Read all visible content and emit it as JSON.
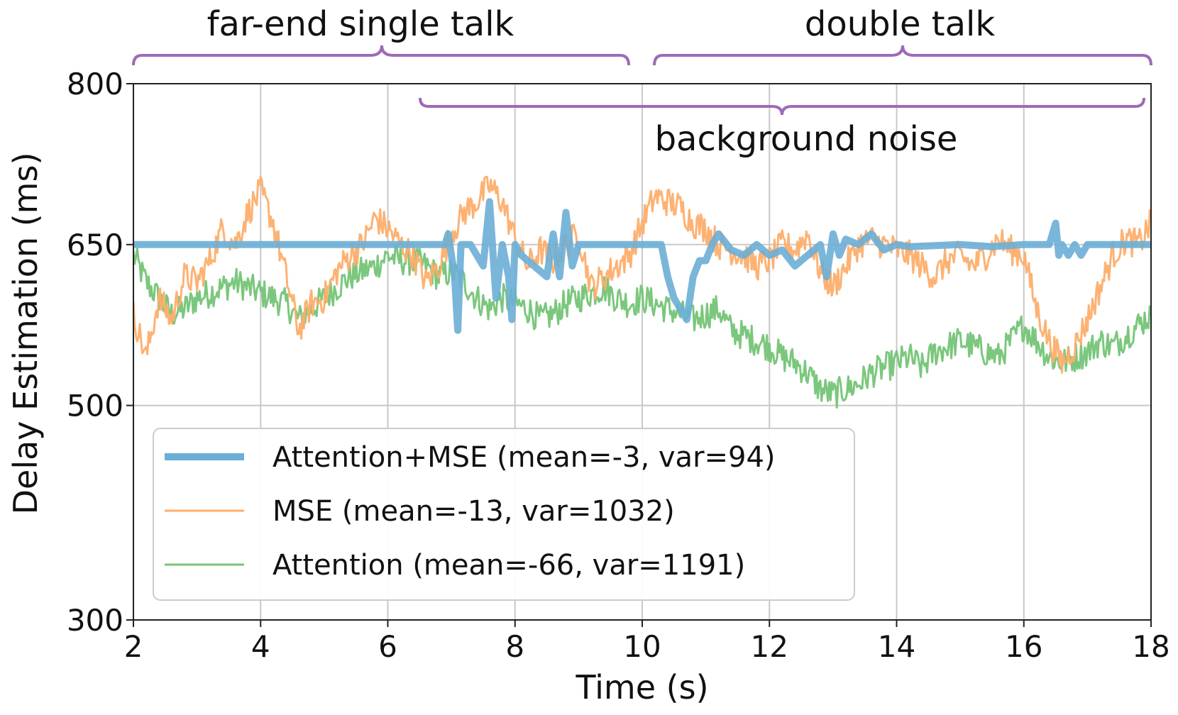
{
  "chart_data": {
    "type": "line",
    "xlabel": "Time (s)",
    "ylabel": "Delay Estimation (ms)",
    "xlim": [
      2,
      18
    ],
    "ylim": [
      300,
      800
    ],
    "xticks": [
      "2",
      "4",
      "6",
      "8",
      "10",
      "12",
      "14",
      "16",
      "18"
    ],
    "yticks": [
      "300",
      "500",
      "650",
      "800"
    ],
    "grid": true,
    "legend_position": "lower-left",
    "annotations": [
      {
        "text": "far-end single talk",
        "x_range": [
          2,
          9.8
        ]
      },
      {
        "text": "double talk",
        "x_range": [
          10.2,
          18
        ]
      },
      {
        "text": "background noise",
        "x_range": [
          6.5,
          17.9
        ]
      }
    ],
    "series": [
      {
        "name": "Attention+MSE (mean=-3, var=94)",
        "color": "#6baed6",
        "x": [
          2,
          6.9,
          6.95,
          7.0,
          7.05,
          7.1,
          7.15,
          7.3,
          7.5,
          7.6,
          7.7,
          7.8,
          7.9,
          7.95,
          8.0,
          8.1,
          8.3,
          8.5,
          8.6,
          8.7,
          8.8,
          8.9,
          9.0,
          9.2,
          10.3,
          10.4,
          10.5,
          10.6,
          10.7,
          10.8,
          10.9,
          11.0,
          11.1,
          11.2,
          11.4,
          11.6,
          11.8,
          12.0,
          12.2,
          12.4,
          12.6,
          12.8,
          12.9,
          13.0,
          13.1,
          13.2,
          13.4,
          13.6,
          13.8,
          14.0,
          14.2,
          15.0,
          15.5,
          16.0,
          16.4,
          16.5,
          16.55,
          16.6,
          16.7,
          16.8,
          16.9,
          17.0,
          18
        ],
        "y": [
          650,
          650,
          660,
          640,
          620,
          570,
          650,
          650,
          630,
          690,
          600,
          650,
          620,
          580,
          650,
          640,
          630,
          620,
          660,
          620,
          680,
          630,
          650,
          650,
          650,
          620,
          600,
          590,
          580,
          620,
          635,
          635,
          650,
          660,
          645,
          640,
          650,
          640,
          645,
          630,
          640,
          650,
          620,
          660,
          640,
          655,
          650,
          660,
          645,
          650,
          648,
          650,
          648,
          650,
          650,
          670,
          640,
          650,
          640,
          650,
          640,
          650,
          650
        ]
      },
      {
        "name": "MSE (mean=-13, var=1032)",
        "color": "#fdae6b",
        "x": [
          2,
          2.2,
          2.4,
          2.6,
          2.8,
          3.0,
          3.2,
          3.4,
          3.6,
          3.8,
          4.0,
          4.2,
          4.4,
          4.6,
          4.8,
          5.0,
          5.2,
          5.4,
          5.6,
          5.8,
          6.0,
          6.2,
          6.4,
          6.6,
          6.8,
          7.0,
          7.2,
          7.4,
          7.6,
          7.8,
          8.0,
          8.2,
          8.4,
          8.6,
          8.8,
          9.0,
          9.2,
          9.4,
          9.6,
          9.8,
          10.0,
          10.2,
          10.4,
          10.6,
          10.8,
          11.0,
          11.2,
          11.4,
          11.6,
          11.8,
          12.0,
          12.2,
          12.4,
          12.6,
          12.8,
          13.0,
          13.2,
          13.4,
          13.6,
          13.8,
          14.0,
          14.2,
          14.4,
          14.6,
          14.8,
          15.0,
          15.2,
          15.4,
          15.6,
          15.8,
          16.0,
          16.2,
          16.4,
          16.6,
          16.8,
          17.0,
          17.2,
          17.4,
          17.6,
          17.8,
          18.0
        ],
        "y": [
          585,
          545,
          600,
          580,
          620,
          615,
          635,
          665,
          650,
          680,
          700,
          670,
          620,
          570,
          595,
          600,
          625,
          640,
          650,
          675,
          665,
          650,
          640,
          615,
          630,
          660,
          680,
          690,
          705,
          690,
          655,
          630,
          645,
          635,
          650,
          660,
          610,
          620,
          630,
          640,
          670,
          695,
          690,
          685,
          670,
          665,
          650,
          645,
          640,
          630,
          635,
          650,
          645,
          660,
          625,
          610,
          630,
          650,
          655,
          650,
          645,
          640,
          630,
          620,
          635,
          640,
          630,
          640,
          655,
          645,
          640,
          590,
          560,
          540,
          555,
          580,
          610,
          640,
          655,
          650,
          670
        ]
      },
      {
        "name": "Attention (mean=-66, var=1191)",
        "color": "#74c476",
        "x": [
          2,
          2.2,
          2.4,
          2.6,
          2.8,
          3.0,
          3.2,
          3.4,
          3.6,
          3.8,
          4.0,
          4.2,
          4.4,
          4.6,
          4.8,
          5.0,
          5.2,
          5.4,
          5.6,
          5.8,
          6.0,
          6.2,
          6.4,
          6.6,
          6.8,
          7.0,
          7.2,
          7.4,
          7.6,
          7.8,
          8.0,
          8.2,
          8.4,
          8.6,
          8.8,
          9.0,
          9.2,
          9.4,
          9.6,
          9.8,
          10.0,
          10.2,
          10.4,
          10.6,
          10.8,
          11.0,
          11.2,
          11.4,
          11.6,
          11.8,
          12.0,
          12.2,
          12.4,
          12.6,
          12.8,
          13.0,
          13.2,
          13.4,
          13.6,
          13.8,
          14.0,
          14.2,
          14.4,
          14.6,
          14.8,
          15.0,
          15.2,
          15.4,
          15.6,
          15.8,
          16.0,
          16.2,
          16.4,
          16.6,
          16.8,
          17.0,
          17.2,
          17.4,
          17.6,
          17.8,
          18.0
        ],
        "y": [
          640,
          615,
          600,
          585,
          590,
          600,
          605,
          610,
          615,
          610,
          605,
          600,
          595,
          580,
          590,
          600,
          610,
          620,
          625,
          630,
          640,
          635,
          635,
          630,
          620,
          625,
          615,
          600,
          590,
          600,
          595,
          590,
          580,
          585,
          595,
          600,
          605,
          610,
          600,
          595,
          600,
          595,
          590,
          585,
          580,
          585,
          590,
          570,
          565,
          560,
          555,
          545,
          540,
          530,
          515,
          510,
          515,
          520,
          530,
          535,
          540,
          545,
          535,
          550,
          555,
          560,
          555,
          550,
          545,
          560,
          575,
          560,
          545,
          540,
          545,
          550,
          560,
          555,
          565,
          575,
          585
        ]
      }
    ]
  }
}
